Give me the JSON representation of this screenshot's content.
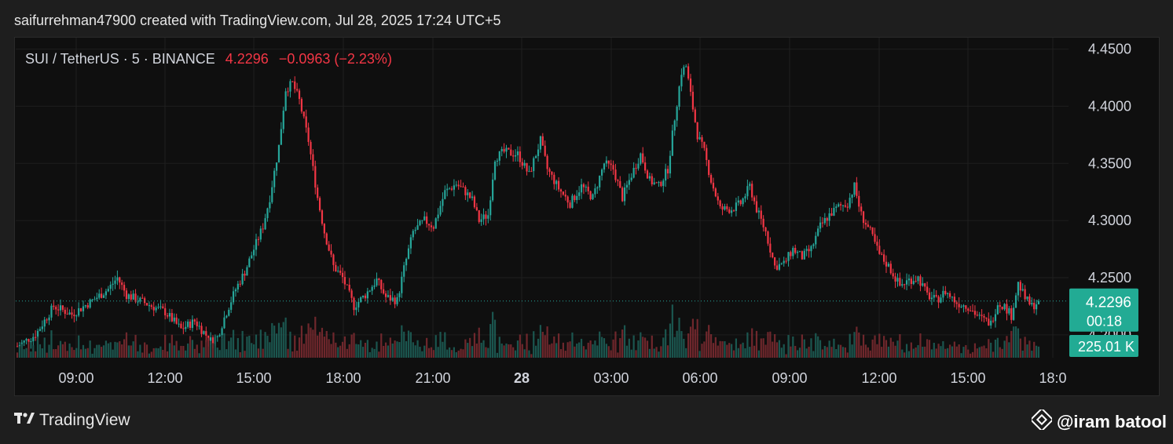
{
  "caption": "saifurrehman47900 created with TradingView.com, Jul 28, 2025 17:24 UTC+5",
  "legend": {
    "symbol": "SUI / TetherUS · 5 · BINANCE",
    "price": "4.2296",
    "change": "−0.0963 (−2.23%)"
  },
  "footer": {
    "brand": "TradingView"
  },
  "watermark": {
    "text": "@iram batool"
  },
  "colors": {
    "up": "#26a69a",
    "down": "#f23645",
    "price_label_bg": "#22ab94",
    "background": "#0f0f0f"
  },
  "icons": [
    "tradingview-logo-icon",
    "binance-diamond-icon"
  ],
  "chart_data": {
    "type": "candlestick",
    "x_ticks": [
      "09:00",
      "12:00",
      "15:00",
      "18:00",
      "21:00",
      "28",
      "03:00",
      "06:00",
      "09:00",
      "12:00",
      "15:00",
      "18:0"
    ],
    "y_ticks": [
      "4.4500",
      "4.4000",
      "4.3500",
      "4.3000",
      "4.2500",
      "4.2000"
    ],
    "ylim": [
      4.18,
      4.46
    ],
    "last_price": 4.2296,
    "last_price_label": "4.2296",
    "countdown_label": "00:18",
    "volume_label": "225.01 K",
    "grid": true,
    "price_path": [
      [
        0,
        4.19
      ],
      [
        8,
        4.2
      ],
      [
        16,
        4.225
      ],
      [
        24,
        4.218
      ],
      [
        33,
        4.23
      ],
      [
        40,
        4.24
      ],
      [
        44,
        4.25
      ],
      [
        48,
        4.235
      ],
      [
        56,
        4.228
      ],
      [
        65,
        4.22
      ],
      [
        72,
        4.205
      ],
      [
        78,
        4.212
      ],
      [
        85,
        4.195
      ],
      [
        88,
        4.198
      ],
      [
        91,
        4.215
      ],
      [
        96,
        4.24
      ],
      [
        100,
        4.255
      ],
      [
        104,
        4.275
      ],
      [
        108,
        4.295
      ],
      [
        111,
        4.32
      ],
      [
        115,
        4.365
      ],
      [
        118,
        4.415
      ],
      [
        121,
        4.42
      ],
      [
        124,
        4.405
      ],
      [
        128,
        4.37
      ],
      [
        132,
        4.32
      ],
      [
        135,
        4.29
      ],
      [
        139,
        4.26
      ],
      [
        143,
        4.25
      ],
      [
        148,
        4.225
      ],
      [
        153,
        4.235
      ],
      [
        158,
        4.248
      ],
      [
        162,
        4.233
      ],
      [
        167,
        4.23
      ],
      [
        170,
        4.258
      ],
      [
        174,
        4.29
      ],
      [
        179,
        4.3
      ],
      [
        183,
        4.295
      ],
      [
        188,
        4.325
      ],
      [
        193,
        4.332
      ],
      [
        197,
        4.325
      ],
      [
        200,
        4.318
      ],
      [
        203,
        4.3
      ],
      [
        207,
        4.305
      ],
      [
        210,
        4.355
      ],
      [
        214,
        4.36
      ],
      [
        220,
        4.358
      ],
      [
        225,
        4.34
      ],
      [
        230,
        4.37
      ],
      [
        233,
        4.345
      ],
      [
        238,
        4.328
      ],
      [
        243,
        4.315
      ],
      [
        248,
        4.33
      ],
      [
        253,
        4.32
      ],
      [
        258,
        4.35
      ],
      [
        262,
        4.345
      ],
      [
        266,
        4.32
      ],
      [
        270,
        4.34
      ],
      [
        274,
        4.358
      ],
      [
        278,
        4.335
      ],
      [
        282,
        4.33
      ],
      [
        286,
        4.345
      ],
      [
        289,
        4.39
      ],
      [
        292,
        4.43
      ],
      [
        294,
        4.435
      ],
      [
        296,
        4.41
      ],
      [
        299,
        4.375
      ],
      [
        302,
        4.36
      ],
      [
        305,
        4.335
      ],
      [
        309,
        4.31
      ],
      [
        314,
        4.31
      ],
      [
        318,
        4.315
      ],
      [
        322,
        4.33
      ],
      [
        325,
        4.31
      ],
      [
        329,
        4.29
      ],
      [
        333,
        4.26
      ],
      [
        337,
        4.262
      ],
      [
        341,
        4.275
      ],
      [
        345,
        4.268
      ],
      [
        349,
        4.275
      ],
      [
        353,
        4.295
      ],
      [
        357,
        4.305
      ],
      [
        361,
        4.312
      ],
      [
        365,
        4.315
      ],
      [
        368,
        4.33
      ],
      [
        371,
        4.305
      ],
      [
        375,
        4.29
      ],
      [
        379,
        4.27
      ],
      [
        383,
        4.26
      ],
      [
        388,
        4.243
      ],
      [
        392,
        4.248
      ],
      [
        396,
        4.25
      ],
      [
        400,
        4.235
      ],
      [
        404,
        4.23
      ],
      [
        408,
        4.238
      ],
      [
        413,
        4.228
      ],
      [
        418,
        4.225
      ],
      [
        423,
        4.215
      ],
      [
        428,
        4.21
      ],
      [
        431,
        4.228
      ],
      [
        434,
        4.225
      ],
      [
        437,
        4.217
      ],
      [
        440,
        4.245
      ],
      [
        443,
        4.232
      ],
      [
        446,
        4.225
      ],
      [
        449,
        4.229
      ]
    ],
    "price_path_x_max": 449
  }
}
